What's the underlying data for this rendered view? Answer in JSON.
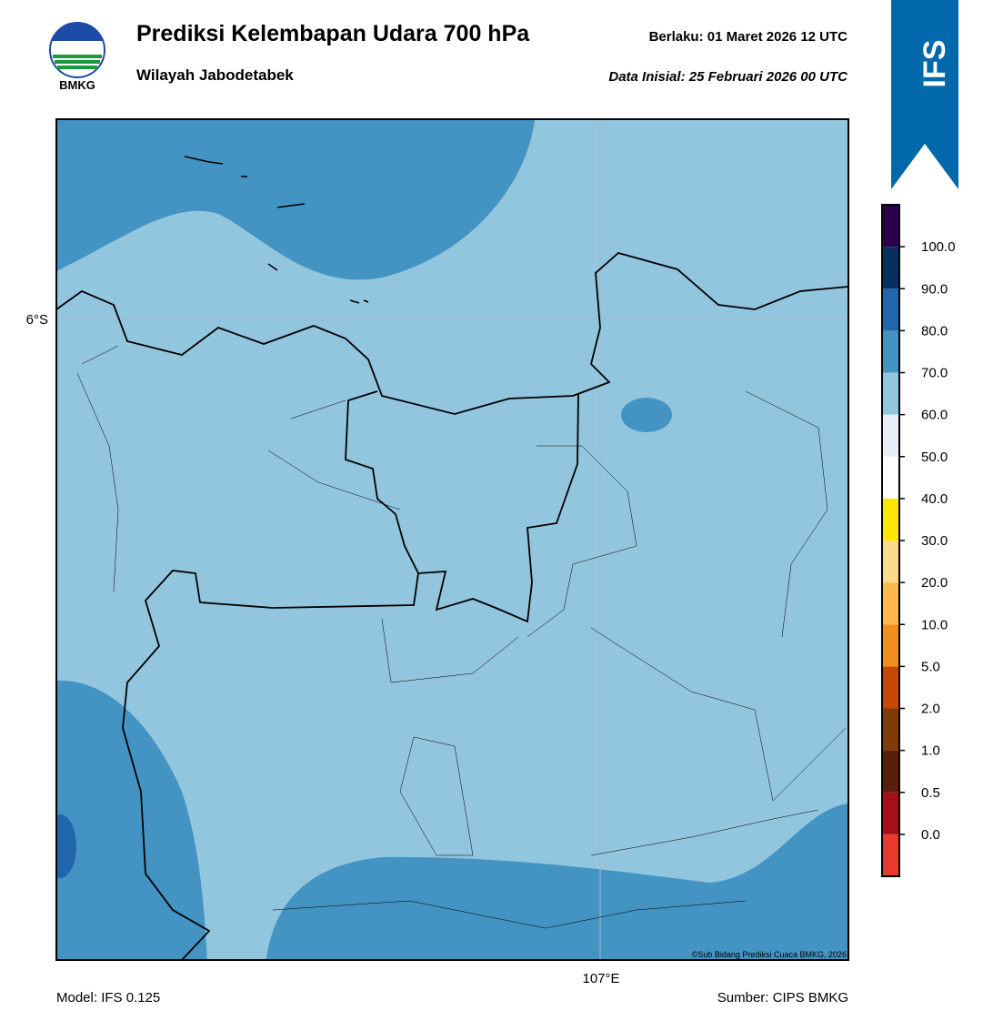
{
  "header": {
    "logo_text": "BMKG",
    "title": "Prediksi Kelembapan Udara 700 hPa",
    "subtitle": "Wilayah Jabodetabek",
    "valid": "Berlaku:  01 Maret 2026 12 UTC",
    "init": "Data Inisial:  25 Februari 2026 00 UTC",
    "badge": "IFS"
  },
  "map": {
    "lat_label": "6°S",
    "lon_label": "107°E",
    "credit": "©Sub Bidang Prediksi Cuaca BMKG, 2026"
  },
  "colorbar": {
    "labels": [
      "0.0",
      "0.5",
      "1.0",
      "2.0",
      "5.0",
      "10.0",
      "20.0",
      "30.0",
      "40.0",
      "50.0",
      "60.0",
      "70.0",
      "80.0",
      "90.0",
      "100.0"
    ],
    "colors": [
      "#e8392c",
      "#a50f15",
      "#5a1e0a",
      "#7f3b08",
      "#c84a00",
      "#f28e1c",
      "#fdb84e",
      "#fdd98a",
      "#ffe600",
      "#ffffff",
      "#e6edf5",
      "#92c5de",
      "#4393c3",
      "#2166ac",
      "#053061",
      "#2d004b"
    ]
  },
  "footer": {
    "model": "Model: IFS 0.125",
    "source": "Sumber: CIPS BMKG"
  }
}
